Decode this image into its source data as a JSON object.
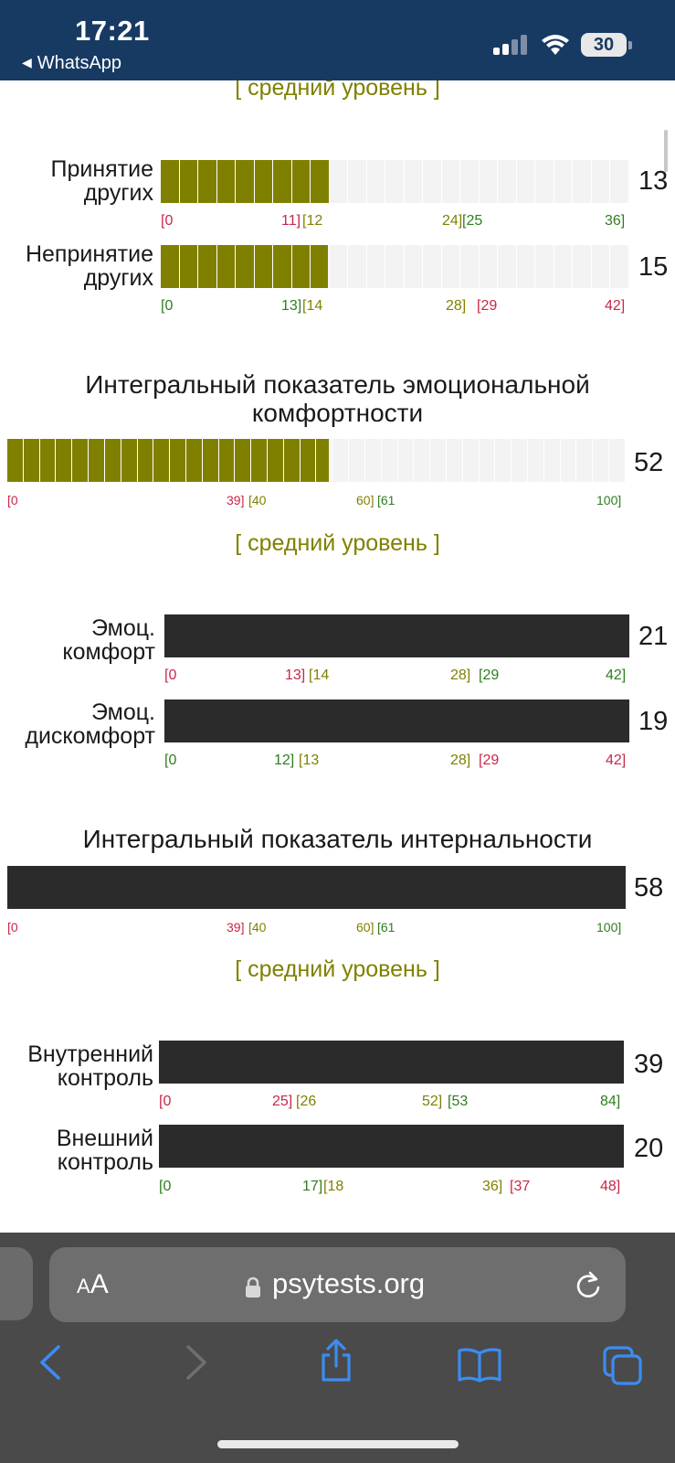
{
  "status_bar": {
    "time": "17:21",
    "back_app": "WhatsApp",
    "back_arrow": "◀",
    "battery": "30"
  },
  "colors": {
    "olive": "#808000",
    "red": "#c8274a",
    "green": "#2e7d1f",
    "dark_bar": "#2b2b2b",
    "status_bar_bg": "#173a63"
  },
  "content": {
    "top_level_label": "[ средний уровень ]",
    "group1": [
      {
        "label_line1": "Принятие",
        "label_line2": "других",
        "score": "13",
        "scale_max": 36,
        "filled_fraction": 0.361,
        "cells": 25,
        "ticks": [
          {
            "text": "[0",
            "color": "red"
          },
          {
            "text": "11]",
            "color": "red"
          },
          {
            "text": "[12",
            "color": "olive"
          },
          {
            "text": "24]",
            "color": "olive"
          },
          {
            "text": "[25",
            "color": "green"
          },
          {
            "text": "36]",
            "color": "green"
          }
        ]
      },
      {
        "label_line1": "Непринятие",
        "label_line2": "других",
        "score": "15",
        "scale_max": 42,
        "filled_fraction": 0.357,
        "cells": 25,
        "ticks": [
          {
            "text": "[0",
            "color": "green"
          },
          {
            "text": "13]",
            "color": "green"
          },
          {
            "text": "[14",
            "color": "olive"
          },
          {
            "text": "28]",
            "color": "olive"
          },
          {
            "text": "[29",
            "color": "red"
          },
          {
            "text": "42]",
            "color": "red"
          }
        ]
      }
    ],
    "section2": {
      "title_line1": "Интегральный показатель эмоциональной",
      "title_line2": "комфортности",
      "score": "52",
      "filled_fraction": 0.52,
      "cells": 38,
      "ticks": [
        {
          "text": "[0",
          "color": "red"
        },
        {
          "text": "39]",
          "color": "red"
        },
        {
          "text": "[40",
          "color": "olive"
        },
        {
          "text": "60]",
          "color": "olive"
        },
        {
          "text": "[61",
          "color": "green"
        },
        {
          "text": "100]",
          "color": "green"
        }
      ],
      "level_label": "[ средний уровень ]"
    },
    "group2": [
      {
        "label_line1": "Эмоц.",
        "label_line2": "комфорт",
        "score": "21",
        "ticks": [
          {
            "text": "[0",
            "color": "red"
          },
          {
            "text": "13]",
            "color": "red"
          },
          {
            "text": "[14",
            "color": "olive"
          },
          {
            "text": "28]",
            "color": "olive"
          },
          {
            "text": "[29",
            "color": "green"
          },
          {
            "text": "42]",
            "color": "green"
          }
        ]
      },
      {
        "label_line1": "Эмоц.",
        "label_line2": "дискомфорт",
        "score": "19",
        "ticks": [
          {
            "text": "[0",
            "color": "green"
          },
          {
            "text": "12]",
            "color": "green"
          },
          {
            "text": "[13",
            "color": "olive"
          },
          {
            "text": "28]",
            "color": "olive"
          },
          {
            "text": "[29",
            "color": "red"
          },
          {
            "text": "42]",
            "color": "red"
          }
        ]
      }
    ],
    "section3": {
      "title": "Интегральный показатель интернальности",
      "score": "58",
      "ticks": [
        {
          "text": "[0",
          "color": "red"
        },
        {
          "text": "39]",
          "color": "red"
        },
        {
          "text": "[40",
          "color": "olive"
        },
        {
          "text": "60]",
          "color": "olive"
        },
        {
          "text": "[61",
          "color": "green"
        },
        {
          "text": "100]",
          "color": "green"
        }
      ],
      "level_label": "[ средний уровень ]"
    },
    "group3": [
      {
        "label_line1": "Внутренний",
        "label_line2": "контроль",
        "score": "39",
        "ticks": [
          {
            "text": "[0",
            "color": "red"
          },
          {
            "text": "25]",
            "color": "red"
          },
          {
            "text": "[26",
            "color": "olive"
          },
          {
            "text": "52]",
            "color": "olive"
          },
          {
            "text": "[53",
            "color": "green"
          },
          {
            "text": "84]",
            "color": "green"
          }
        ]
      },
      {
        "label_line1": "Внешний",
        "label_line2": "контроль",
        "score": "20",
        "ticks": [
          {
            "text": "[0",
            "color": "green"
          },
          {
            "text": "17]",
            "color": "green"
          },
          {
            "text": "[18",
            "color": "olive"
          },
          {
            "text": "36]",
            "color": "olive"
          },
          {
            "text": "[37",
            "color": "red"
          },
          {
            "text": "48]",
            "color": "red"
          }
        ]
      }
    ]
  },
  "browser": {
    "text_size_small": "A",
    "text_size_large": "A",
    "url": "psytests.org",
    "icons": [
      "lock-icon",
      "reload-icon",
      "back-icon",
      "forward-icon",
      "share-icon",
      "bookmarks-icon",
      "tabs-icon"
    ]
  }
}
